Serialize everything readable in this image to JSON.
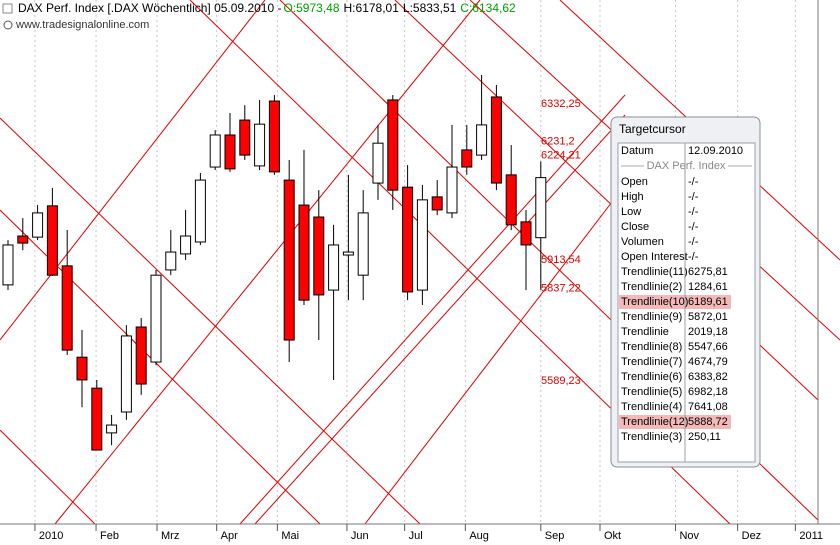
{
  "chart_data": {
    "type": "candlestick",
    "title": "DAX Perf. Index [.DAX  Wöchentlich] 05.09.2010 -",
    "header": [
      "O:5973,48",
      "H:6178,01",
      "L:5833,51",
      "C:6134,62"
    ],
    "header_colors": [
      "#00a000",
      "#000000",
      "#000000",
      "#00a000"
    ],
    "watermark": "www.tradesignalonline.com",
    "open": [
      5847,
      5978,
      5975,
      6059,
      5898,
      5653,
      5570,
      5450,
      5506,
      5734,
      5640,
      5887,
      5930,
      5962,
      6163,
      6249,
      6289,
      6166,
      6340,
      6128,
      6061,
      6029,
      5833,
      5927,
      5873,
      6120,
      6343,
      6109,
      5833,
      6083,
      6040,
      6209,
      6195,
      6351,
      6142,
      6016,
      5973.48
    ],
    "high": [
      5967,
      6026,
      6061,
      6107,
      5994,
      5726,
      5592,
      5498,
      5739,
      5758,
      5887,
      5994,
      6048,
      6147,
      6262,
      6308,
      6329,
      6343,
      6356,
      6182,
      6209,
      6101,
      6008,
      6142,
      6101,
      6276,
      6356,
      6168,
      6115,
      6128,
      6276,
      6276,
      6410,
      6383,
      6222,
      6048,
      6178.01
    ],
    "low": [
      5833,
      5940,
      5967,
      5871,
      5659,
      5519,
      5404,
      5417,
      5485,
      5552,
      5632,
      5873,
      5914,
      5954,
      6155,
      6150,
      6182,
      6155,
      6142,
      5640,
      5793,
      5699,
      5592,
      5806,
      5806,
      6075,
      6048,
      5806,
      5793,
      6034,
      6026,
      6142,
      6182,
      6101,
      5994,
      5833,
      5833.51
    ],
    "close": [
      5954,
      5959,
      6040,
      5873,
      5672,
      5592,
      5404,
      5471,
      5710,
      5581,
      5873,
      5935,
      5978,
      6128,
      6249,
      6158,
      6195,
      6278,
      6150,
      5699,
      5806,
      5820,
      5954,
      5935,
      6040,
      6227,
      6101,
      5828,
      6075,
      6048,
      6163,
      6163,
      6276,
      6120,
      6008,
      5954,
      6134.62
    ],
    "up_color": "#ffffff",
    "down_color": "#ff0000",
    "ylim": [
      5211,
      6611
    ],
    "xlim": [
      -0.54,
      54.73
    ],
    "xticks": [
      {
        "value": 1.82,
        "label": "2010"
      },
      {
        "value": 5.95,
        "label": "Feb"
      },
      {
        "value": 10.07,
        "label": "Mrz"
      },
      {
        "value": 14.1,
        "label": "Apr"
      },
      {
        "value": 18.2,
        "label": "Mai"
      },
      {
        "value": 22.9,
        "label": "Jun"
      },
      {
        "value": 26.8,
        "label": "Jul"
      },
      {
        "value": 30.9,
        "label": "Aug"
      },
      {
        "value": 36,
        "label": "Sep"
      },
      {
        "value": 40,
        "label": "Okt"
      },
      {
        "value": 45.1,
        "label": "Nov"
      },
      {
        "value": 49.3,
        "label": "Dez"
      },
      {
        "value": 53.2,
        "label": "2011"
      }
    ],
    "xgrid": true,
    "trendline_color": "#e00000",
    "trendline_labels": [
      {
        "value": 6332.25,
        "label": "6332,25"
      },
      {
        "value": 6231.2,
        "label": "6231,2"
      },
      {
        "value": 6224.21,
        "label": "6224,21"
      },
      {
        "value": 5913.54,
        "label": "5913,54"
      },
      {
        "value": 5837.22,
        "label": "5837,22"
      },
      {
        "value": 5589.23,
        "label": "5589,23"
      }
    ]
  },
  "data_window": {
    "title": "Targetcursor",
    "date_row": [
      "Datum",
      "12.09.2010"
    ],
    "section": "DAX Perf. Index",
    "rows": [
      [
        "Open",
        "-/-"
      ],
      [
        "High",
        "-/-"
      ],
      [
        "Low",
        "-/-"
      ],
      [
        "Close",
        "-/-"
      ],
      [
        "Volumen",
        "-/-"
      ],
      [
        "Open Interest",
        "-/-"
      ],
      [
        "Trendlinie(11)",
        "6275,81"
      ],
      [
        "Trendlinie(2)",
        "1284,61"
      ],
      [
        "Trendlinie(10)",
        "6189,61"
      ],
      [
        "Trendlinie(9)",
        "5872,01"
      ],
      [
        "Trendlinie",
        "2019,18"
      ],
      [
        "Trendlinie(8)",
        "5547,66"
      ],
      [
        "Trendlinie(7)",
        "4674,79"
      ],
      [
        "Trendlinie(6)",
        "6383,82"
      ],
      [
        "Trendlinie(5)",
        "6982,18"
      ],
      [
        "Trendlinie(4)",
        "7641,08"
      ],
      [
        "Trendlinie(12)",
        "5888,72"
      ],
      [
        "Trendlinie(3)",
        "250,11"
      ]
    ],
    "highlighted": [
      8,
      16
    ]
  }
}
